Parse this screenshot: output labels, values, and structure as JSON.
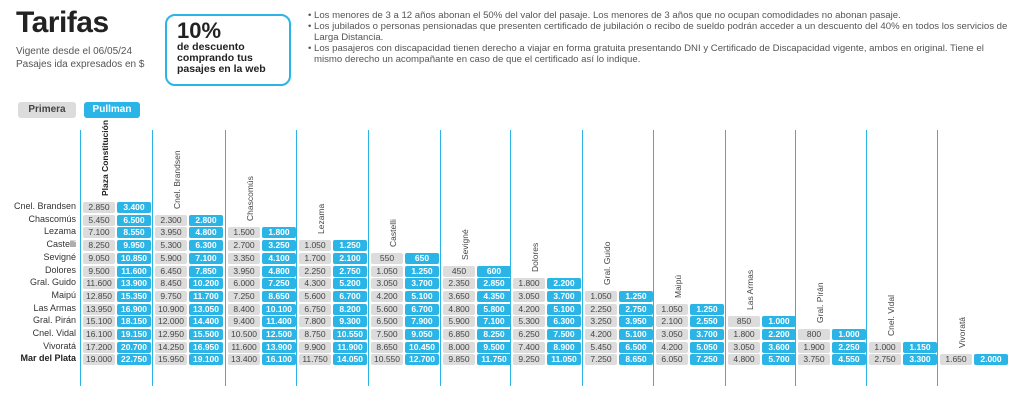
{
  "header": {
    "title": "Tarifas",
    "vigente": "Vigente desde el 06/05/24",
    "expresados": "Pasajes ida expresados en $"
  },
  "promo": {
    "percent": "10%",
    "line1": "de descuento",
    "line2": "comprando tus",
    "line3": "pasajes en la web"
  },
  "notes": [
    "Los menores de 3 a 12 años abonan el 50% del valor del pasaje. Los menores de 3 años que no ocupan comodidades no abonan pasaje.",
    "Los jubilados o personas pensionadas que presenten certificado de jubilación o recibo de sueldo podrán acceder a un descuento del 40% en todos los servicios de Larga Distancia.",
    "Los pasajeros con discapacidad tienen derecho a viajar en forma gratuita presentando DNI y Certificado de Discapacidad vigente, ambos en original. Tiene el mismo derecho un acompañante en caso de que el certificado así lo indique."
  ],
  "tabs": [
    "Primera",
    "Pullman"
  ],
  "colors": {
    "accent": "#2bb5e6",
    "gray": "#dcdcdc"
  },
  "columns": [
    "Plaza Constitución",
    "Cnel. Brandsen",
    "Chascomús",
    "Lezama",
    "Castelli",
    "Sevigné",
    "Dolores",
    "Gral. Guido",
    "Maipú",
    "Las Armas",
    "Gral. Pirán",
    "Cnel. Vidal",
    "Vivoratá"
  ],
  "rows": [
    {
      "label": "Cnel. Brandsen",
      "cells": [
        [
          "2.850",
          "3.400"
        ]
      ]
    },
    {
      "label": "Chascomús",
      "cells": [
        [
          "5.450",
          "6.500"
        ],
        [
          "2.300",
          "2.800"
        ]
      ]
    },
    {
      "label": "Lezama",
      "cells": [
        [
          "7.100",
          "8.550"
        ],
        [
          "3.950",
          "4.800"
        ],
        [
          "1.500",
          "1.800"
        ]
      ]
    },
    {
      "label": "Castelli",
      "cells": [
        [
          "8.250",
          "9.950"
        ],
        [
          "5.300",
          "6.300"
        ],
        [
          "2.700",
          "3.250"
        ],
        [
          "1.050",
          "1.250"
        ]
      ]
    },
    {
      "label": "Sevigné",
      "cells": [
        [
          "9.050",
          "10.850"
        ],
        [
          "5.900",
          "7.100"
        ],
        [
          "3.350",
          "4.100"
        ],
        [
          "1.700",
          "2.100"
        ],
        [
          "550",
          "650"
        ]
      ]
    },
    {
      "label": "Dolores",
      "cells": [
        [
          "9.500",
          "11.600"
        ],
        [
          "6.450",
          "7.850"
        ],
        [
          "3.950",
          "4.800"
        ],
        [
          "2.250",
          "2.750"
        ],
        [
          "1.050",
          "1.250"
        ],
        [
          "450",
          "600"
        ]
      ]
    },
    {
      "label": "Gral. Guido",
      "cells": [
        [
          "11.600",
          "13.900"
        ],
        [
          "8.450",
          "10.200"
        ],
        [
          "6.000",
          "7.250"
        ],
        [
          "4.300",
          "5.200"
        ],
        [
          "3.050",
          "3.700"
        ],
        [
          "2.350",
          "2.850"
        ],
        [
          "1.800",
          "2.200"
        ]
      ]
    },
    {
      "label": "Maipú",
      "cells": [
        [
          "12.850",
          "15.350"
        ],
        [
          "9.750",
          "11.700"
        ],
        [
          "7.250",
          "8.650"
        ],
        [
          "5.600",
          "6.700"
        ],
        [
          "4.200",
          "5.100"
        ],
        [
          "3.650",
          "4.350"
        ],
        [
          "3.050",
          "3.700"
        ],
        [
          "1.050",
          "1.250"
        ]
      ]
    },
    {
      "label": "Las Armas",
      "cells": [
        [
          "13.950",
          "16.900"
        ],
        [
          "10.900",
          "13.050"
        ],
        [
          "8.400",
          "10.100"
        ],
        [
          "6.750",
          "8.200"
        ],
        [
          "5.600",
          "6.700"
        ],
        [
          "4.800",
          "5.800"
        ],
        [
          "4.200",
          "5.100"
        ],
        [
          "2.250",
          "2.750"
        ],
        [
          "1.050",
          "1.250"
        ]
      ]
    },
    {
      "label": "Gral. Pirán",
      "cells": [
        [
          "15.100",
          "18.150"
        ],
        [
          "12.000",
          "14.400"
        ],
        [
          "9.400",
          "11.400"
        ],
        [
          "7.800",
          "9.300"
        ],
        [
          "6.500",
          "7.900"
        ],
        [
          "5.900",
          "7.100"
        ],
        [
          "5.300",
          "6.300"
        ],
        [
          "3.250",
          "3.950"
        ],
        [
          "2.100",
          "2.550"
        ],
        [
          "850",
          "1.000"
        ]
      ]
    },
    {
      "label": "Cnel. Vidal",
      "cells": [
        [
          "16.100",
          "19.150"
        ],
        [
          "12.950",
          "15.500"
        ],
        [
          "10.500",
          "12.500"
        ],
        [
          "8.750",
          "10.550"
        ],
        [
          "7.500",
          "9.050"
        ],
        [
          "6.850",
          "8.250"
        ],
        [
          "6.250",
          "7.500"
        ],
        [
          "4.200",
          "5.100"
        ],
        [
          "3.050",
          "3.700"
        ],
        [
          "1.800",
          "2.200"
        ],
        [
          "800",
          "1.000"
        ]
      ]
    },
    {
      "label": "Vivoratá",
      "cells": [
        [
          "17.200",
          "20.700"
        ],
        [
          "14.250",
          "16.950"
        ],
        [
          "11.600",
          "13.900"
        ],
        [
          "9.900",
          "11.900"
        ],
        [
          "8.650",
          "10.450"
        ],
        [
          "8.000",
          "9.500"
        ],
        [
          "7.400",
          "8.900"
        ],
        [
          "5.450",
          "6.500"
        ],
        [
          "4.200",
          "5.050"
        ],
        [
          "3.050",
          "3.600"
        ],
        [
          "1.900",
          "2.250"
        ],
        [
          "1.000",
          "1.150"
        ]
      ]
    },
    {
      "label": "Mar del Plata",
      "cells": [
        [
          "19.000",
          "22.750"
        ],
        [
          "15.950",
          "19.100"
        ],
        [
          "13.400",
          "16.100"
        ],
        [
          "11.750",
          "14.050"
        ],
        [
          "10.550",
          "12.700"
        ],
        [
          "9.850",
          "11.750"
        ],
        [
          "9.250",
          "11.050"
        ],
        [
          "7.250",
          "8.650"
        ],
        [
          "6.050",
          "7.250"
        ],
        [
          "4.800",
          "5.700"
        ],
        [
          "3.750",
          "4.550"
        ],
        [
          "2.750",
          "3.300"
        ],
        [
          "1.650",
          "2.000"
        ]
      ]
    }
  ]
}
